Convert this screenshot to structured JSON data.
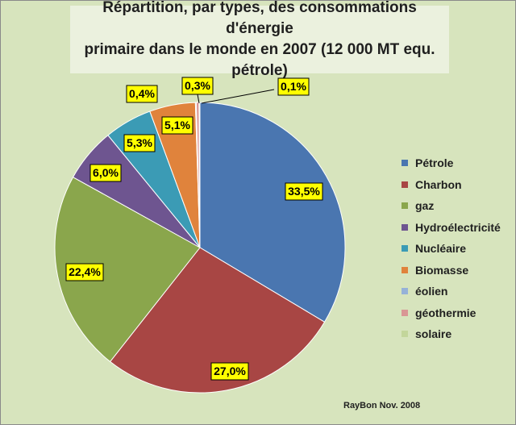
{
  "chart_data": {
    "type": "pie",
    "title": "Répartition, par types, des consommations d'énergie\nprimaire dans le monde  en 2007 (12 000 MT equ.\npétrole)",
    "series": [
      {
        "name": "Pétrole",
        "value": 33.5,
        "label": "33,5%",
        "color": "#4a76b0"
      },
      {
        "name": "Charbon",
        "value": 27.0,
        "label": "27,0%",
        "color": "#a84644"
      },
      {
        "name": "gaz",
        "value": 22.4,
        "label": "22,4%",
        "color": "#8aa64c"
      },
      {
        "name": "Hydroélectricité",
        "value": 6.0,
        "label": "6,0%",
        "color": "#6e5590"
      },
      {
        "name": "Nucléaire",
        "value": 5.3,
        "label": "5,3%",
        "color": "#3b9bb5"
      },
      {
        "name": "Biomasse",
        "value": 5.1,
        "label": "5,1%",
        "color": "#e0833c"
      },
      {
        "name": "éolien",
        "value": 0.1,
        "label": "",
        "color": "#96b2d8"
      },
      {
        "name": "géothermie",
        "value": 0.3,
        "label": "0,3%",
        "color": "#d99694"
      },
      {
        "name": "solaire",
        "value": 0.1,
        "label": "0,1%",
        "color": "#c3d69b"
      }
    ],
    "extra_labels": [
      "0,4%"
    ],
    "legend_position": "right",
    "label_style": {
      "background": "#ffff00",
      "border": "#000000"
    }
  },
  "credit": "RayBon Nov. 2008"
}
